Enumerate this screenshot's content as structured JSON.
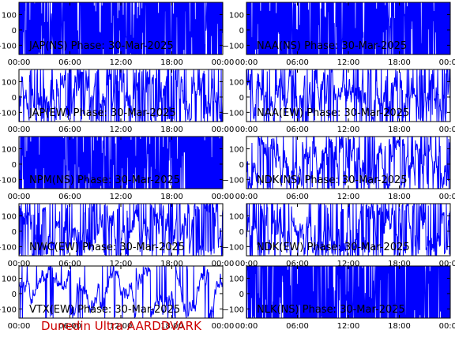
{
  "credit": {
    "text": "Dunedin Ultra AARDDVARK"
  },
  "colors": {
    "trace": "#0000ff",
    "axes": "#000000",
    "credit": "#cc0000"
  },
  "chart_data": [
    {
      "type": "line",
      "title": "JAP(NS) Phase: 30-Mar-2025",
      "ylim": [
        -160,
        180
      ],
      "yticks": [
        100,
        0,
        -100
      ],
      "xticks": [
        "00:00",
        "06:00",
        "12:00",
        "18:00",
        "00:00"
      ],
      "xlim_hours": [
        0,
        24
      ],
      "variability": "saturated"
    },
    {
      "type": "line",
      "title": "NAA(NS) Phase: 30-Mar-2025",
      "ylim": [
        -160,
        180
      ],
      "yticks": [
        100,
        0,
        -100
      ],
      "xticks": [
        "00:00",
        "06:00",
        "12:00",
        "18:00",
        "00:00"
      ],
      "xlim_hours": [
        0,
        24
      ],
      "variability": "saturated"
    },
    {
      "type": "line",
      "title": "JAP(EW) Phase: 30-Mar-2025",
      "ylim": [
        -160,
        180
      ],
      "yticks": [
        100,
        0,
        -100
      ],
      "xticks": [
        "00:00",
        "06:00",
        "12:00",
        "18:00",
        "00:00"
      ],
      "xlim_hours": [
        0,
        24
      ],
      "variability": "wrapped"
    },
    {
      "type": "line",
      "title": "NAA(EW) Phase: 30-Mar-2025",
      "ylim": [
        -160,
        180
      ],
      "yticks": [
        100,
        0,
        -100
      ],
      "xticks": [
        "00:00",
        "06:00",
        "12:00",
        "18:00",
        "00:00"
      ],
      "xlim_hours": [
        0,
        24
      ],
      "variability": "wrapped"
    },
    {
      "type": "line",
      "title": "NPM(NS) Phase: 30-Mar-2025",
      "ylim": [
        -160,
        180
      ],
      "yticks": [
        100,
        0,
        -100
      ],
      "xticks": [
        "00:00",
        "06:00",
        "12:00",
        "18:00",
        "00:00"
      ],
      "xlim_hours": [
        0,
        24
      ],
      "variability": "saturated"
    },
    {
      "type": "line",
      "title": "NDK(NS) Phase: 30-Mar-2025",
      "ylim": [
        -160,
        180
      ],
      "yticks": [
        100,
        0,
        -100
      ],
      "xticks": [
        "00:00",
        "06:00",
        "12:00",
        "18:00",
        "00:00"
      ],
      "xlim_hours": [
        0,
        24
      ],
      "variability": "wrapped"
    },
    {
      "type": "line",
      "title": "NWC(EW) Phase: 30-Mar-2025",
      "ylim": [
        -160,
        180
      ],
      "yticks": [
        100,
        0,
        -100
      ],
      "xticks": [
        "00:00",
        "06:00",
        "12:00",
        "18:00",
        "00:00"
      ],
      "xlim_hours": [
        0,
        24
      ],
      "variability": "wrapped"
    },
    {
      "type": "line",
      "title": "NDK(EW) Phase: 30-Mar-2025",
      "ylim": [
        -160,
        180
      ],
      "yticks": [
        100,
        0,
        -100
      ],
      "xticks": [
        "00:00",
        "06:00",
        "12:00",
        "18:00",
        "00:00"
      ],
      "xlim_hours": [
        0,
        24
      ],
      "variability": "wrapped"
    },
    {
      "type": "line",
      "title": "VTX(EW) Phase: 30-Mar-2025",
      "ylim": [
        -160,
        180
      ],
      "yticks": [
        100,
        0,
        -100
      ],
      "xticks": [
        "00:00",
        "06:00",
        "12:00",
        "18:00",
        "00:00"
      ],
      "xlim_hours": [
        0,
        24
      ],
      "variability": "sparse"
    },
    {
      "type": "line",
      "title": "NLK(NS) Phase: 30-Mar-2025",
      "ylim": [
        -160,
        180
      ],
      "yticks": [
        100,
        0,
        -100
      ],
      "xticks": [
        "00:00",
        "06:00",
        "12:00",
        "18:00",
        "00:00"
      ],
      "xlim_hours": [
        0,
        24
      ],
      "variability": "saturated"
    }
  ]
}
